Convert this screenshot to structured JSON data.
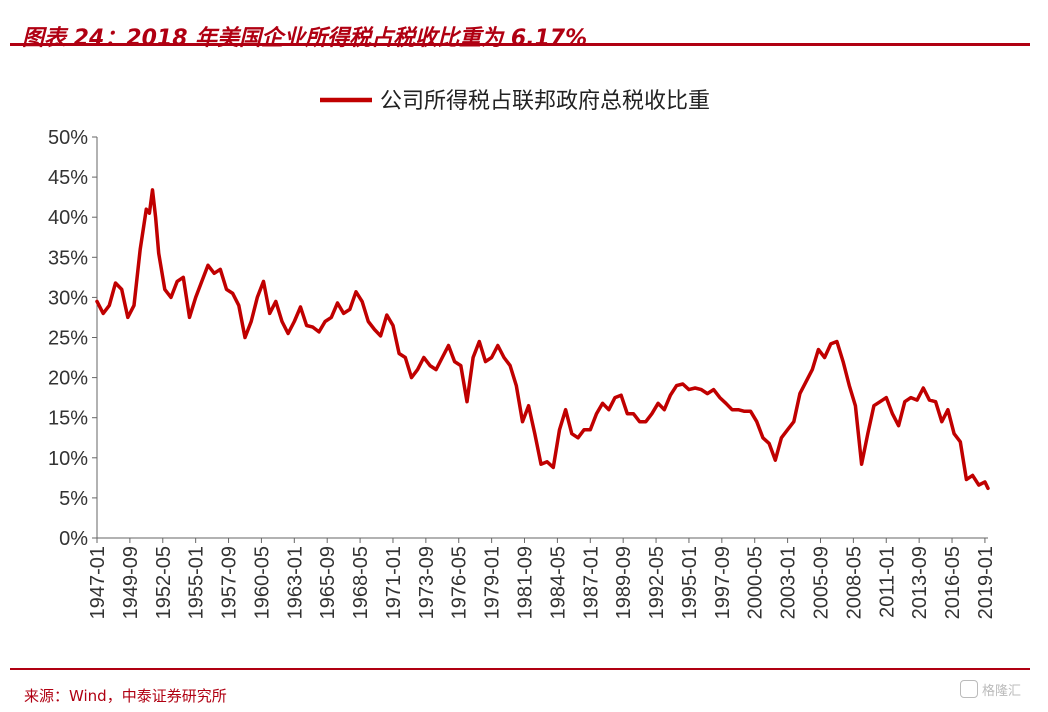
{
  "header": {
    "title": "图表 24：2018 年美国企业所得税占税收比重为 6.17%"
  },
  "footer": {
    "source": "来源：Wind，中泰证券研究所",
    "watermark": "格隆汇"
  },
  "colors": {
    "accent": "#b00012",
    "series": "#c00000"
  },
  "chart_data": {
    "type": "line",
    "title": "",
    "xlabel": "",
    "ylabel": "",
    "ylim": [
      0,
      50
    ],
    "y_unit": "%",
    "yticks": [
      0,
      5,
      10,
      15,
      20,
      25,
      30,
      35,
      40,
      45,
      50
    ],
    "ytick_labels": [
      "0%",
      "5%",
      "10%",
      "15%",
      "20%",
      "25%",
      "30%",
      "35%",
      "40%",
      "45%",
      "50%"
    ],
    "x_tick_labels": [
      "1947-01",
      "1949-09",
      "1952-05",
      "1955-01",
      "1957-09",
      "1960-05",
      "1963-01",
      "1965-09",
      "1968-05",
      "1971-01",
      "1973-09",
      "1976-05",
      "1979-01",
      "1981-09",
      "1984-05",
      "1987-01",
      "1989-09",
      "1992-05",
      "1995-01",
      "1997-09",
      "2000-05",
      "2003-01",
      "2005-09",
      "2008-05",
      "2011-01",
      "2013-09",
      "2016-05",
      "2019-01"
    ],
    "x_range": [
      "1947-01",
      "2019-04"
    ],
    "legend": {
      "position": "top-center"
    },
    "grid": false,
    "series": [
      {
        "name": "公司所得税占联邦政府总税收比重",
        "points": [
          [
            "1947-01",
            29.5
          ],
          [
            "1947-07",
            28.0
          ],
          [
            "1948-01",
            29.0
          ],
          [
            "1948-07",
            31.8
          ],
          [
            "1949-01",
            31.0
          ],
          [
            "1949-07",
            27.5
          ],
          [
            "1950-01",
            29.0
          ],
          [
            "1950-07",
            36.0
          ],
          [
            "1951-01",
            41.0
          ],
          [
            "1951-04",
            40.5
          ],
          [
            "1951-07",
            43.4
          ],
          [
            "1951-10",
            40.0
          ],
          [
            "1952-01",
            35.5
          ],
          [
            "1952-07",
            31.0
          ],
          [
            "1953-01",
            30.0
          ],
          [
            "1953-07",
            32.0
          ],
          [
            "1954-01",
            32.5
          ],
          [
            "1954-07",
            27.5
          ],
          [
            "1955-01",
            30.0
          ],
          [
            "1955-07",
            32.0
          ],
          [
            "1956-01",
            34.0
          ],
          [
            "1956-07",
            33.0
          ],
          [
            "1957-01",
            33.5
          ],
          [
            "1957-07",
            31.0
          ],
          [
            "1958-01",
            30.5
          ],
          [
            "1958-07",
            29.0
          ],
          [
            "1959-01",
            25.0
          ],
          [
            "1959-07",
            27.0
          ],
          [
            "1960-01",
            30.0
          ],
          [
            "1960-07",
            32.0
          ],
          [
            "1961-01",
            28.0
          ],
          [
            "1961-07",
            29.5
          ],
          [
            "1962-01",
            27.0
          ],
          [
            "1962-07",
            25.5
          ],
          [
            "1963-01",
            27.0
          ],
          [
            "1963-07",
            28.8
          ],
          [
            "1964-01",
            26.5
          ],
          [
            "1964-07",
            26.3
          ],
          [
            "1965-01",
            25.7
          ],
          [
            "1965-07",
            27.0
          ],
          [
            "1966-01",
            27.5
          ],
          [
            "1966-07",
            29.3
          ],
          [
            "1967-01",
            28.0
          ],
          [
            "1967-07",
            28.5
          ],
          [
            "1968-01",
            30.7
          ],
          [
            "1968-07",
            29.5
          ],
          [
            "1969-01",
            27.0
          ],
          [
            "1969-07",
            26.0
          ],
          [
            "1970-01",
            25.2
          ],
          [
            "1970-07",
            27.8
          ],
          [
            "1971-01",
            26.5
          ],
          [
            "1971-07",
            23.0
          ],
          [
            "1972-01",
            22.5
          ],
          [
            "1972-07",
            20.0
          ],
          [
            "1973-01",
            21.0
          ],
          [
            "1973-07",
            22.5
          ],
          [
            "1974-01",
            21.5
          ],
          [
            "1974-07",
            21.0
          ],
          [
            "1975-01",
            22.5
          ],
          [
            "1975-07",
            24.0
          ],
          [
            "1976-01",
            22.0
          ],
          [
            "1976-07",
            21.5
          ],
          [
            "1977-01",
            17.0
          ],
          [
            "1977-07",
            22.5
          ],
          [
            "1978-01",
            24.5
          ],
          [
            "1978-07",
            22.0
          ],
          [
            "1979-01",
            22.5
          ],
          [
            "1979-07",
            24.0
          ],
          [
            "1980-01",
            22.5
          ],
          [
            "1980-07",
            21.5
          ],
          [
            "1981-01",
            19.0
          ],
          [
            "1981-07",
            14.5
          ],
          [
            "1982-01",
            16.5
          ],
          [
            "1982-07",
            13.0
          ],
          [
            "1983-01",
            9.2
          ],
          [
            "1983-07",
            9.5
          ],
          [
            "1984-01",
            8.8
          ],
          [
            "1984-07",
            13.5
          ],
          [
            "1985-01",
            16.0
          ],
          [
            "1985-07",
            13.0
          ],
          [
            "1986-01",
            12.5
          ],
          [
            "1986-07",
            13.5
          ],
          [
            "1987-01",
            13.5
          ],
          [
            "1987-07",
            15.5
          ],
          [
            "1988-01",
            16.8
          ],
          [
            "1988-07",
            16.0
          ],
          [
            "1989-01",
            17.5
          ],
          [
            "1989-07",
            17.8
          ],
          [
            "1990-01",
            15.5
          ],
          [
            "1990-07",
            15.5
          ],
          [
            "1991-01",
            14.5
          ],
          [
            "1991-07",
            14.5
          ],
          [
            "1992-01",
            15.5
          ],
          [
            "1992-07",
            16.8
          ],
          [
            "1993-01",
            16.0
          ],
          [
            "1993-07",
            17.8
          ],
          [
            "1994-01",
            19.0
          ],
          [
            "1994-07",
            19.2
          ],
          [
            "1995-01",
            18.5
          ],
          [
            "1995-07",
            18.7
          ],
          [
            "1996-01",
            18.5
          ],
          [
            "1996-07",
            18.0
          ],
          [
            "1997-01",
            18.5
          ],
          [
            "1997-07",
            17.5
          ],
          [
            "1998-01",
            16.8
          ],
          [
            "1998-07",
            16.0
          ],
          [
            "1999-01",
            16.0
          ],
          [
            "1999-07",
            15.8
          ],
          [
            "2000-01",
            15.8
          ],
          [
            "2000-07",
            14.5
          ],
          [
            "2001-01",
            12.5
          ],
          [
            "2001-07",
            11.8
          ],
          [
            "2002-01",
            9.7
          ],
          [
            "2002-07",
            12.5
          ],
          [
            "2003-01",
            13.5
          ],
          [
            "2003-07",
            14.5
          ],
          [
            "2004-01",
            18.0
          ],
          [
            "2004-07",
            19.5
          ],
          [
            "2005-01",
            21.0
          ],
          [
            "2005-07",
            23.5
          ],
          [
            "2006-01",
            22.5
          ],
          [
            "2006-07",
            24.2
          ],
          [
            "2007-01",
            24.5
          ],
          [
            "2007-07",
            22.0
          ],
          [
            "2008-01",
            19.0
          ],
          [
            "2008-07",
            16.5
          ],
          [
            "2009-01",
            9.2
          ],
          [
            "2009-07",
            13.0
          ],
          [
            "2010-01",
            16.5
          ],
          [
            "2010-07",
            17.0
          ],
          [
            "2011-01",
            17.5
          ],
          [
            "2011-07",
            15.5
          ],
          [
            "2012-01",
            14.0
          ],
          [
            "2012-07",
            17.0
          ],
          [
            "2013-01",
            17.5
          ],
          [
            "2013-07",
            17.2
          ],
          [
            "2014-01",
            18.7
          ],
          [
            "2014-07",
            17.2
          ],
          [
            "2015-01",
            17.0
          ],
          [
            "2015-07",
            14.5
          ],
          [
            "2016-01",
            16.0
          ],
          [
            "2016-07",
            13.0
          ],
          [
            "2017-01",
            12.0
          ],
          [
            "2017-07",
            7.3
          ],
          [
            "2018-01",
            7.8
          ],
          [
            "2018-07",
            6.6
          ],
          [
            "2019-01",
            7.0
          ],
          [
            "2019-04",
            6.2
          ]
        ]
      }
    ]
  }
}
